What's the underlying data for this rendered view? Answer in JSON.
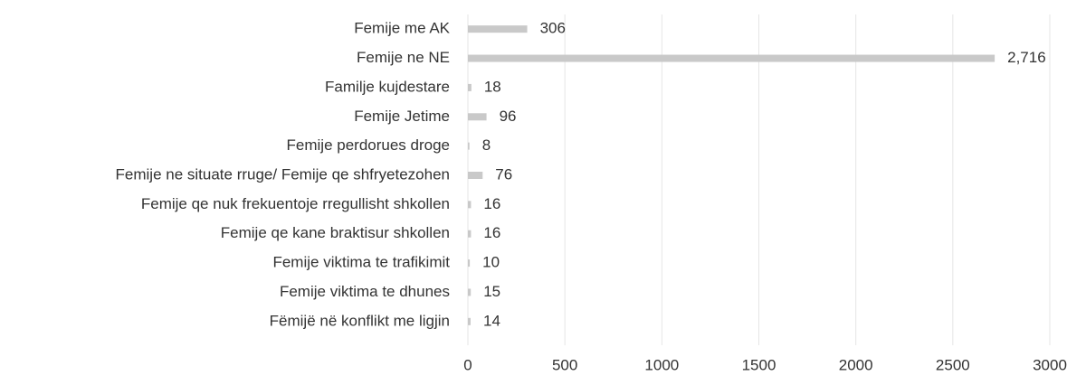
{
  "chart_data": {
    "type": "bar",
    "orientation": "horizontal",
    "categories": [
      "Femije me AK",
      "Femije ne NE",
      "Familje kujdestare",
      "Femije Jetime",
      "Femije perdorues droge",
      "Femije ne situate rruge/ Femije qe shfryetezohen",
      "Femije qe nuk frekuentoje rregullisht shkollen",
      "Femije qe kane braktisur shkollen",
      "Femije viktima te trafikimit",
      "Femije viktima te dhunes",
      "Fëmijë në konflikt me ligjin"
    ],
    "values": [
      306,
      2716,
      18,
      96,
      8,
      76,
      16,
      16,
      10,
      15,
      14
    ],
    "value_labels": [
      "306",
      "2,716",
      "18",
      "96",
      "8",
      "76",
      "16",
      "16",
      "10",
      "15",
      "14"
    ],
    "color": "#c9c9c9",
    "xlim": [
      0,
      3000
    ],
    "xticks": [
      0,
      500,
      1000,
      1500,
      2000,
      2500,
      3000
    ],
    "grid": true
  }
}
